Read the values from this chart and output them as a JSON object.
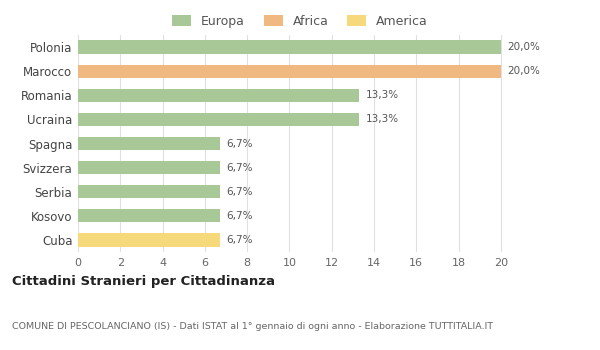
{
  "categories": [
    "Polonia",
    "Marocco",
    "Romania",
    "Ucraina",
    "Spagna",
    "Svizzera",
    "Serbia",
    "Kosovo",
    "Cuba"
  ],
  "values": [
    20.0,
    20.0,
    13.3,
    13.3,
    6.7,
    6.7,
    6.7,
    6.7,
    6.7
  ],
  "labels": [
    "20,0%",
    "20,0%",
    "13,3%",
    "13,3%",
    "6,7%",
    "6,7%",
    "6,7%",
    "6,7%",
    "6,7%"
  ],
  "colors": [
    "#a8c897",
    "#f0b982",
    "#a8c897",
    "#a8c897",
    "#a8c897",
    "#a8c897",
    "#a8c897",
    "#a8c897",
    "#f5d97a"
  ],
  "legend": [
    {
      "label": "Europa",
      "color": "#a8c897"
    },
    {
      "label": "Africa",
      "color": "#f0b982"
    },
    {
      "label": "America",
      "color": "#f5d97a"
    }
  ],
  "xlim": [
    0,
    21
  ],
  "xticks": [
    0,
    2,
    4,
    6,
    8,
    10,
    12,
    14,
    16,
    18,
    20
  ],
  "title": "Cittadini Stranieri per Cittadinanza",
  "subtitle": "COMUNE DI PESCOLANCIANO (IS) - Dati ISTAT al 1° gennaio di ogni anno - Elaborazione TUTTITALIA.IT",
  "background_color": "#ffffff",
  "grid_color": "#e0e0e0"
}
